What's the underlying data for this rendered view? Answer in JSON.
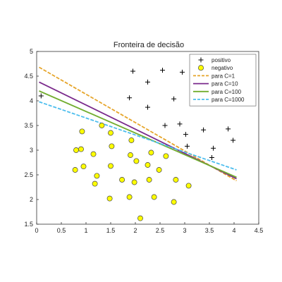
{
  "chart_data": {
    "type": "scatter",
    "title": "Fronteira de decisão",
    "xlabel": "",
    "ylabel": "",
    "xlim": [
      0,
      4.5
    ],
    "ylim": [
      1.5,
      5
    ],
    "xticks": [
      "0",
      "0.5",
      "1",
      "1.5",
      "2",
      "2.5",
      "3",
      "3.5",
      "4",
      "4.5"
    ],
    "yticks": [
      "1.5",
      "2",
      "2.5",
      "3",
      "3.5",
      "4",
      "4.5",
      "5"
    ],
    "grid": false,
    "legend_position": "top-right",
    "scatter_series": [
      {
        "name": "positivo",
        "marker": "plus",
        "color": "#000000",
        "points": [
          [
            0.09,
            4.1
          ],
          [
            1.95,
            4.6
          ],
          [
            2.25,
            4.38
          ],
          [
            2.55,
            4.62
          ],
          [
            2.95,
            4.58
          ],
          [
            1.88,
            4.06
          ],
          [
            2.25,
            3.87
          ],
          [
            2.78,
            4.04
          ],
          [
            2.6,
            3.5
          ],
          [
            2.9,
            3.53
          ],
          [
            3.02,
            3.32
          ],
          [
            3.38,
            3.41
          ],
          [
            3.88,
            3.43
          ],
          [
            3.98,
            3.2
          ],
          [
            3.05,
            3.08
          ],
          [
            3.58,
            3.04
          ],
          [
            3.55,
            2.85
          ]
        ]
      },
      {
        "name": "negativo",
        "marker": "circle",
        "color": "#ffff00",
        "points": [
          [
            0.92,
            3.38
          ],
          [
            1.32,
            3.5
          ],
          [
            1.5,
            3.35
          ],
          [
            1.52,
            3.08
          ],
          [
            1.92,
            3.2
          ],
          [
            0.8,
            3.0
          ],
          [
            0.9,
            3.02
          ],
          [
            1.15,
            2.92
          ],
          [
            1.9,
            2.9
          ],
          [
            2.32,
            2.95
          ],
          [
            2.62,
            2.88
          ],
          [
            2.02,
            2.78
          ],
          [
            0.95,
            2.67
          ],
          [
            1.5,
            2.68
          ],
          [
            2.25,
            2.7
          ],
          [
            2.48,
            2.6
          ],
          [
            0.78,
            2.6
          ],
          [
            1.22,
            2.48
          ],
          [
            1.73,
            2.4
          ],
          [
            2.28,
            2.4
          ],
          [
            1.18,
            2.32
          ],
          [
            1.98,
            2.35
          ],
          [
            2.82,
            2.4
          ],
          [
            3.08,
            2.28
          ],
          [
            1.88,
            2.05
          ],
          [
            2.38,
            2.05
          ],
          [
            1.48,
            2.02
          ],
          [
            2.78,
            1.95
          ],
          [
            2.1,
            1.62
          ]
        ]
      }
    ],
    "line_series": [
      {
        "name": "para C=1",
        "color": "#e6a52a",
        "dash": true,
        "x": [
          0.05,
          4.05
        ],
        "y": [
          4.68,
          2.38
        ]
      },
      {
        "name": "para C=10",
        "color": "#7a2a8c",
        "dash": false,
        "x": [
          0.05,
          4.05
        ],
        "y": [
          4.38,
          2.42
        ]
      },
      {
        "name": "para C=100",
        "color": "#72ad2f",
        "dash": false,
        "x": [
          0.05,
          4.05
        ],
        "y": [
          4.2,
          2.45
        ]
      },
      {
        "name": "para C=1000",
        "color": "#4dbeee",
        "dash": true,
        "x": [
          0.05,
          4.05
        ],
        "y": [
          3.98,
          2.6
        ]
      }
    ]
  }
}
